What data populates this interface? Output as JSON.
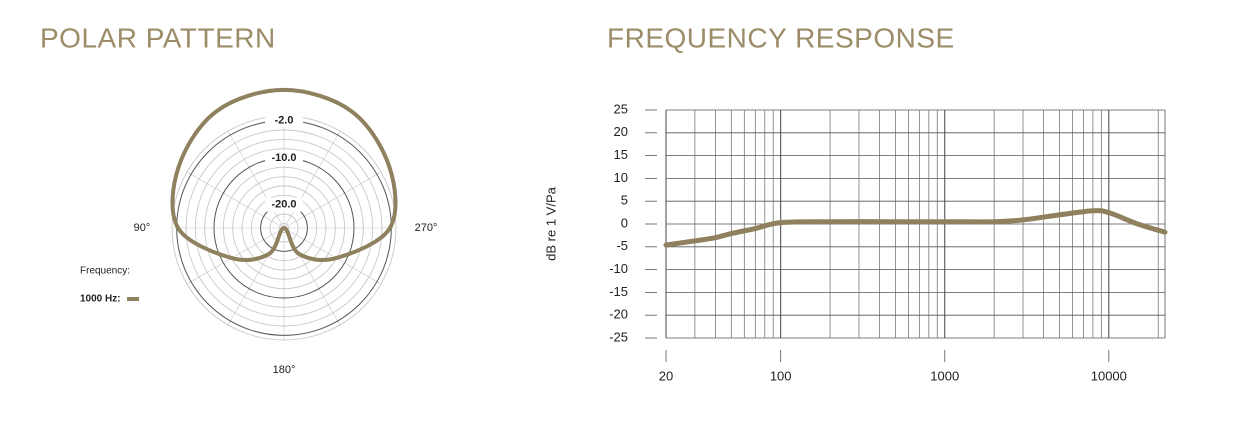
{
  "chart_data": [
    {
      "type": "polar",
      "title": "POLAR PATTERN",
      "angles": [
        0,
        30,
        60,
        90,
        120,
        150,
        180,
        210,
        240,
        270,
        300,
        330
      ],
      "series": [
        {
          "name": "1000 Hz:",
          "color": "#8f805e",
          "values": [
            4.6,
            3.9,
            1.1,
            -2.3,
            -12.1,
            -18.6,
            -25,
            -18.6,
            -12.1,
            -2.3,
            1.1,
            3.9
          ]
        }
      ],
      "rlim": [
        -25,
        5
      ],
      "rticks": [
        {
          "value": -2,
          "label": "-2.0"
        },
        {
          "value": -10,
          "label": "-10.0"
        },
        {
          "value": -20,
          "label": "-20.0"
        }
      ],
      "rminor": [
        -24,
        -22,
        -18,
        -16,
        -14,
        -12,
        -8,
        -6,
        -4,
        -1
      ],
      "agrid": [
        0,
        30,
        60,
        90,
        120,
        150,
        180,
        210,
        240,
        270,
        300,
        330
      ],
      "angle_labels": [
        {
          "value": 90,
          "label": "90°"
        },
        {
          "value": 180,
          "label": "180°"
        },
        {
          "value": 270,
          "label": "270°"
        }
      ],
      "legend_title": "Frequency:"
    },
    {
      "type": "line",
      "title": "FREQUENCY RESPONSE",
      "y_label": "dB re 1 V/Pa",
      "x": [
        20,
        30,
        40,
        50,
        70,
        100,
        200,
        500,
        1000,
        2000,
        3000,
        5000,
        8000,
        10000,
        15000,
        22000
      ],
      "series": [
        {
          "name": "1000 Hz",
          "color": "#8f805e",
          "values": [
            -4.6,
            -3.7,
            -3.0,
            -2.1,
            -1.0,
            0.3,
            0.5,
            0.5,
            0.5,
            0.5,
            0.9,
            2.0,
            2.9,
            2.5,
            0.0,
            -1.8
          ]
        }
      ],
      "xlog": true,
      "grid": true,
      "xlim": [
        20,
        22000
      ],
      "xticks": [
        20,
        100,
        1000,
        10000
      ],
      "xminor": [
        30,
        40,
        50,
        60,
        70,
        80,
        90,
        200,
        300,
        400,
        500,
        600,
        700,
        800,
        900,
        2000,
        3000,
        4000,
        5000,
        6000,
        7000,
        8000,
        9000,
        20000
      ],
      "ylim": [
        -25,
        25
      ],
      "yticks": [
        25,
        20,
        15,
        10,
        5,
        0,
        -5,
        -10,
        -15,
        -20,
        -25
      ]
    }
  ]
}
